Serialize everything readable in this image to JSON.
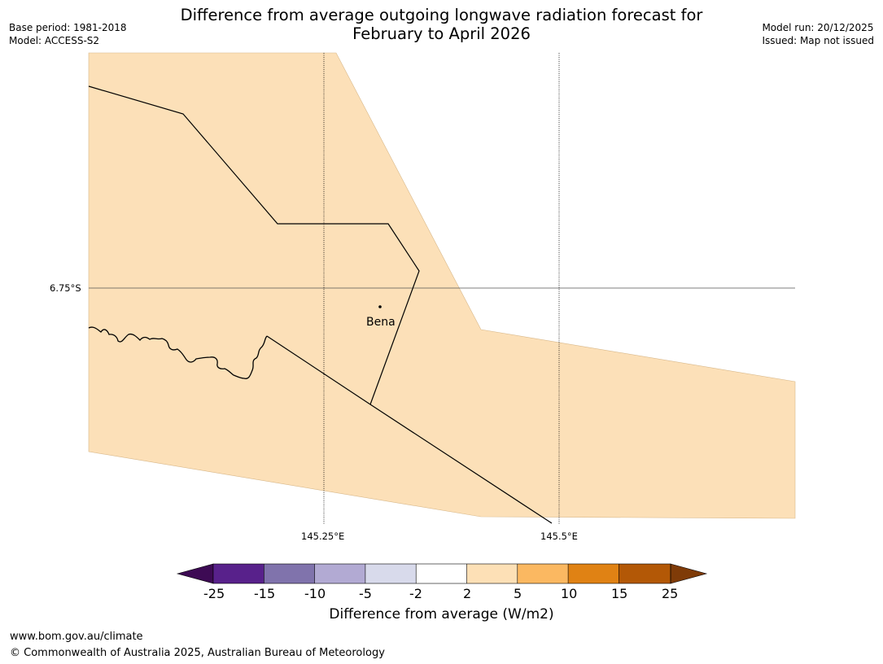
{
  "header": {
    "title_line1": "Difference from average outgoing longwave radiation forecast for",
    "title_line2": "February to April 2026",
    "base_period": "Base period: 1981-2018",
    "model": "Model: ACCESS-S2",
    "model_run": "Model run: 20/12/2025",
    "issued": "Issued: Map not issued"
  },
  "map": {
    "lat_label": "6.75°S",
    "lon_labels": [
      "145.25°E",
      "145.5°E"
    ],
    "place_label": "Bena",
    "fill_color": "#fce0b8"
  },
  "colorbar": {
    "title": "Difference from average (W/m2)",
    "ticks": [
      "-25",
      "-15",
      "-10",
      "-5",
      "-2",
      "2",
      "5",
      "10",
      "15",
      "25"
    ],
    "colors": [
      "#3d0a54",
      "#58218b",
      "#8073ac",
      "#b2aad3",
      "#d8daeb",
      "#ffffff",
      "#fde0b6",
      "#fbb861",
      "#e08214",
      "#b35806",
      "#7f3b08"
    ]
  },
  "footer": {
    "url": "www.bom.gov.au/climate",
    "copyright": "© Commonwealth of Australia 2025, Australian Bureau of Meteorology"
  }
}
